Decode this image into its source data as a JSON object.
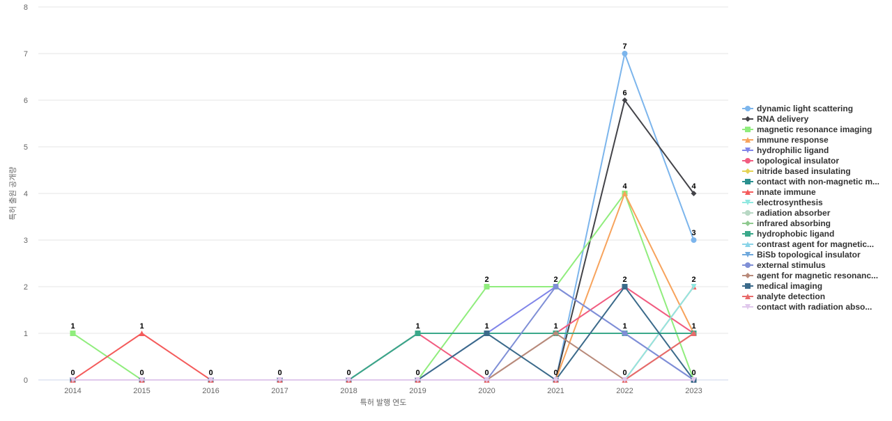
{
  "chart_data": {
    "type": "line",
    "x_label": "특허 발행 연도",
    "y_label": "특허 출원 공개량",
    "categories": [
      "2014",
      "2015",
      "2016",
      "2017",
      "2018",
      "2019",
      "2020",
      "2021",
      "2022",
      "2023"
    ],
    "ylim": [
      0,
      8
    ],
    "yticks": [
      0,
      1,
      2,
      3,
      4,
      5,
      6,
      7,
      8
    ],
    "grid": true,
    "legend": "right",
    "series": [
      {
        "name": "dynamic light scattering",
        "color": "#7cb5ec",
        "marker": "circle",
        "values": [
          0,
          0,
          0,
          0,
          0,
          0,
          0,
          0,
          7,
          3
        ]
      },
      {
        "name": "RNA delivery",
        "color": "#434348",
        "marker": "diamond",
        "values": [
          0,
          0,
          0,
          0,
          0,
          0,
          0,
          0,
          6,
          4
        ]
      },
      {
        "name": "magnetic resonance imaging",
        "color": "#90ed7d",
        "marker": "square",
        "values": [
          1,
          0,
          0,
          0,
          0,
          0,
          2,
          2,
          4,
          0
        ]
      },
      {
        "name": "immune response",
        "color": "#f7a35c",
        "marker": "triangle",
        "values": [
          0,
          0,
          0,
          0,
          0,
          0,
          0,
          0,
          4,
          1
        ]
      },
      {
        "name": "hydrophilic ligand",
        "color": "#8085e9",
        "marker": "triangle-down",
        "values": [
          0,
          0,
          0,
          0,
          0,
          0,
          1,
          2,
          1,
          0
        ]
      },
      {
        "name": "topological insulator",
        "color": "#f15c80",
        "marker": "circle",
        "values": [
          0,
          0,
          0,
          0,
          0,
          1,
          0,
          1,
          2,
          1
        ]
      },
      {
        "name": "nitride based insulating",
        "color": "#e4d354",
        "marker": "diamond",
        "values": [
          0,
          0,
          0,
          0,
          0,
          0,
          0,
          0,
          0,
          0
        ]
      },
      {
        "name": "contact with non-magnetic m...",
        "color": "#2b908f",
        "marker": "square",
        "values": [
          0,
          0,
          0,
          0,
          0,
          1,
          1,
          1,
          1,
          1
        ]
      },
      {
        "name": "innate immune",
        "color": "#f45b5b",
        "marker": "triangle",
        "values": [
          0,
          1,
          0,
          0,
          0,
          0,
          0,
          0,
          0,
          2
        ]
      },
      {
        "name": "electrosynthesis",
        "color": "#91e8e1",
        "marker": "triangle-down",
        "values": [
          0,
          0,
          0,
          0,
          0,
          0,
          0,
          0,
          0,
          2
        ]
      },
      {
        "name": "radiation absorber",
        "color": "#b8d8c4",
        "marker": "circle",
        "values": [
          0,
          0,
          0,
          0,
          0,
          0,
          0,
          1,
          1,
          1
        ]
      },
      {
        "name": "infrared absorbing",
        "color": "#8fc98f",
        "marker": "diamond",
        "values": [
          0,
          0,
          0,
          0,
          0,
          0,
          0,
          0,
          0,
          0
        ]
      },
      {
        "name": "hydrophobic ligand",
        "color": "#3aa88a",
        "marker": "square",
        "values": [
          0,
          0,
          0,
          0,
          0,
          1,
          1,
          1,
          1,
          1
        ]
      },
      {
        "name": "contrast agent for magnetic...",
        "color": "#8ad4e8",
        "marker": "triangle",
        "values": [
          0,
          0,
          0,
          0,
          0,
          0,
          0,
          0,
          0,
          0
        ]
      },
      {
        "name": "BiSb topological insulator",
        "color": "#6fa8dc",
        "marker": "triangle-down",
        "values": [
          0,
          0,
          0,
          0,
          0,
          0,
          0,
          0,
          0,
          0
        ]
      },
      {
        "name": "external stimulus",
        "color": "#7f8fd6",
        "marker": "circle",
        "values": [
          0,
          0,
          0,
          0,
          0,
          0,
          0,
          2,
          1,
          0
        ]
      },
      {
        "name": "agent for magnetic resonanc...",
        "color": "#b88a7a",
        "marker": "diamond",
        "values": [
          0,
          0,
          0,
          0,
          0,
          0,
          0,
          1,
          0,
          1
        ]
      },
      {
        "name": "medical imaging",
        "color": "#3b6a8a",
        "marker": "square",
        "values": [
          0,
          0,
          0,
          0,
          0,
          0,
          1,
          0,
          2,
          0
        ]
      },
      {
        "name": "analyte detection",
        "color": "#e86a6a",
        "marker": "triangle",
        "values": [
          0,
          0,
          0,
          0,
          0,
          0,
          0,
          0,
          0,
          1
        ]
      },
      {
        "name": "contact with radiation abso...",
        "color": "#e0c8ec",
        "marker": "triangle-down",
        "values": [
          0,
          0,
          0,
          0,
          0,
          0,
          0,
          0,
          0,
          0
        ]
      }
    ]
  }
}
